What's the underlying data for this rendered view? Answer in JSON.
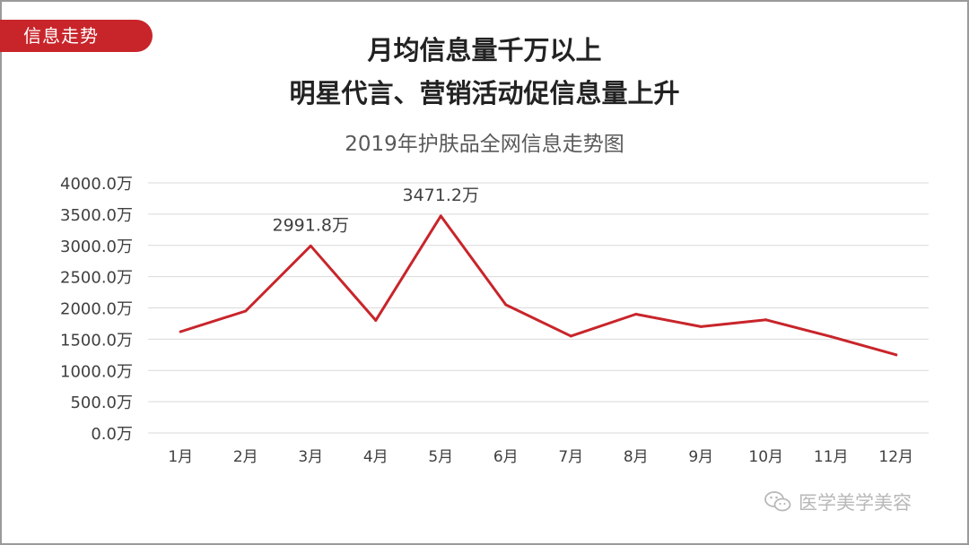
{
  "badge": "信息走势",
  "headline": {
    "line1": "月均信息量千万以上",
    "line2": "明星代言、营销活动促信息量上升"
  },
  "colors": {
    "accent": "#c8252b",
    "line": "#c8252b",
    "grid": "#d9d9d9",
    "text": "#404040"
  },
  "watermark": {
    "icon": "wechat-icon",
    "text": "医学美学美容"
  },
  "chart_data": {
    "type": "line",
    "title": "2019年护肤品全网信息走势图",
    "xlabel": "",
    "ylabel": "",
    "categories": [
      "1月",
      "2月",
      "3月",
      "4月",
      "5月",
      "6月",
      "7月",
      "8月",
      "9月",
      "10月",
      "11月",
      "12月"
    ],
    "series": [
      {
        "values": [
          1620,
          1950,
          2991.8,
          1800,
          3471.2,
          2050,
          1550,
          1900,
          1700,
          1810,
          1540,
          1250
        ]
      }
    ],
    "annotations": [
      {
        "index": 2,
        "label": "2991.8万"
      },
      {
        "index": 4,
        "label": "3471.2万"
      }
    ],
    "y_ticks": [
      "0.0万",
      "500.0万",
      "1000.0万",
      "1500.0万",
      "2000.0万",
      "2500.0万",
      "3000.0万",
      "3500.0万",
      "4000.0万"
    ],
    "ylim": [
      0,
      4000
    ],
    "grid": true,
    "legend": "none"
  }
}
